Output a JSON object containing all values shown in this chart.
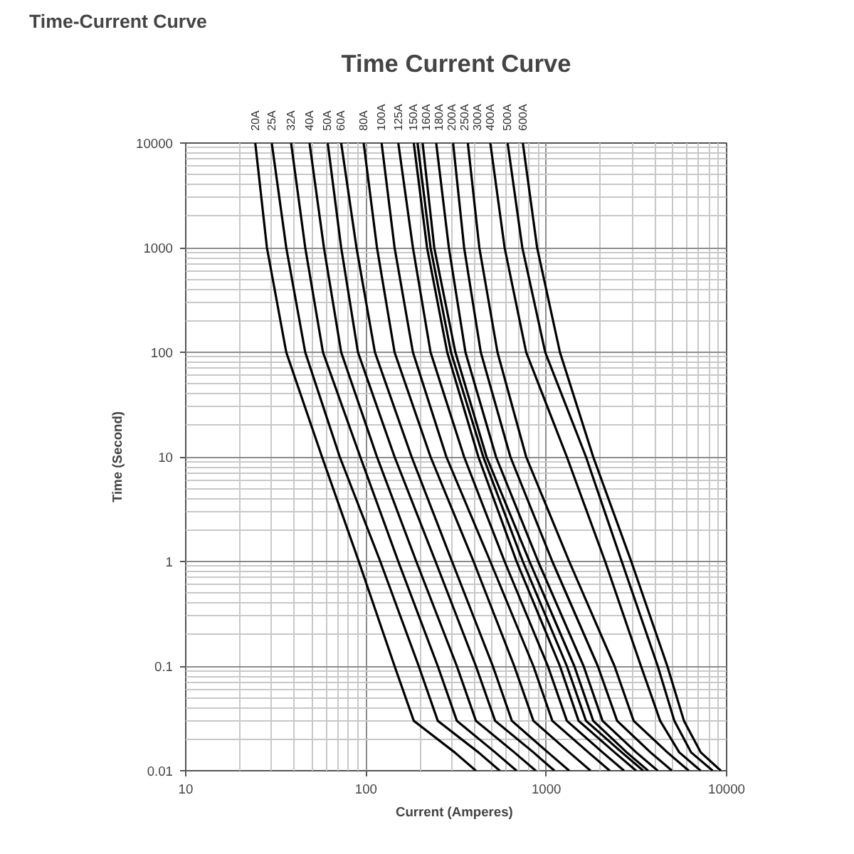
{
  "chart_data": {
    "type": "line",
    "title": "Time-Current Curve",
    "subtitle": "Time Current Curve",
    "xlabel": "Current  (Amperes)",
    "ylabel": "Time (Second)",
    "log": "xy",
    "xlim": [
      10,
      10000
    ],
    "ylim": [
      0.01,
      10000
    ],
    "xticks": [
      10,
      100,
      1000,
      10000
    ],
    "yticks": [
      0.01,
      0.1,
      1,
      10,
      100,
      1000,
      10000
    ],
    "grid": true,
    "line_style": "solid",
    "series": [
      {
        "name": "20A",
        "color": "#000000",
        "x": [
          24.3,
          28.2,
          36.1,
          57.0,
          91.2,
          144,
          184,
          310,
          407
        ],
        "values": [
          10000,
          1000,
          100,
          10,
          1,
          0.1,
          0.03,
          0.015,
          0.01
        ]
      },
      {
        "name": "25A",
        "color": "#000000",
        "x": [
          30.0,
          36.1,
          46.0,
          71.5,
          120,
          196,
          250,
          420,
          552
        ],
        "values": [
          10000,
          1000,
          100,
          10,
          1,
          0.1,
          0.03,
          0.015,
          0.01
        ]
      },
      {
        "name": "32A",
        "color": "#000000",
        "x": [
          38.4,
          46.0,
          57.7,
          92.9,
          151,
          250,
          319,
          520,
          684
        ],
        "values": [
          10000,
          1000,
          100,
          10,
          1,
          0.1,
          0.03,
          0.015,
          0.01
        ]
      },
      {
        "name": "40A",
        "color": "#000000",
        "x": [
          48.6,
          58.4,
          72.8,
          115,
          190,
          319,
          407,
          664,
          874
        ],
        "values": [
          10000,
          1000,
          100,
          10,
          1,
          0.1,
          0.03,
          0.015,
          0.01
        ]
      },
      {
        "name": "50A",
        "color": "#000000",
        "x": [
          61.3,
          72.8,
          90.2,
          144,
          243,
          407,
          520,
          848,
          1110
        ],
        "values": [
          10000,
          1000,
          100,
          10,
          1,
          0.1,
          0.03,
          0.015,
          0.01
        ]
      },
      {
        "name": "60A",
        "color": "#000000",
        "x": [
          72.8,
          88.5,
          112,
          179,
          300,
          505,
          644,
          1020,
          1340
        ],
        "values": [
          10000,
          1000,
          100,
          10,
          1,
          0.1,
          0.03,
          0.015,
          0.01
        ]
      },
      {
        "name": "80A",
        "color": "#000000",
        "x": [
          97.0,
          115,
          144,
          228,
          395,
          664,
          848,
          1340,
          1760
        ],
        "values": [
          10000,
          1000,
          100,
          10,
          1,
          0.1,
          0.03,
          0.015,
          0.01
        ]
      },
      {
        "name": "100A",
        "color": "#000000",
        "x": [
          122,
          144,
          182,
          279,
          489,
          848,
          1080,
          1710,
          2250
        ],
        "values": [
          10000,
          1000,
          100,
          10,
          1,
          0.1,
          0.03,
          0.015,
          0.01
        ]
      },
      {
        "name": "125A",
        "color": "#000000",
        "x": [
          151,
          182,
          228,
          350,
          587,
          1020,
          1300,
          2050,
          2700
        ],
        "values": [
          10000,
          1000,
          100,
          10,
          1,
          0.1,
          0.03,
          0.015,
          0.01
        ]
      },
      {
        "name": "150A",
        "color": "#000000",
        "x": [
          184,
          218,
          282,
          420,
          684,
          1190,
          1510,
          2390,
          3150
        ],
        "values": [
          10000,
          1000,
          100,
          10,
          1,
          0.1,
          0.03,
          0.015,
          0.01
        ]
      },
      {
        "name": "160A",
        "color": "#000000",
        "x": [
          193,
          228,
          296,
          447,
          741,
          1300,
          1660,
          2620,
          3450
        ],
        "values": [
          10000,
          1000,
          100,
          10,
          1,
          0.1,
          0.03,
          0.015,
          0.01
        ]
      },
      {
        "name": "180A",
        "color": "#000000",
        "x": [
          206,
          239,
          313,
          466,
          807,
          1430,
          1820,
          2790,
          3670
        ],
        "values": [
          10000,
          1000,
          100,
          10,
          1,
          0.1,
          0.03,
          0.015,
          0.01
        ]
      },
      {
        "name": "200A",
        "color": "#000000",
        "x": [
          245,
          288,
          356,
          526,
          901,
          1610,
          2050,
          3150,
          4150
        ],
        "values": [
          10000,
          1000,
          100,
          10,
          1,
          0.1,
          0.03,
          0.015,
          0.01
        ]
      },
      {
        "name": "250A",
        "color": "#000000",
        "x": [
          304,
          350,
          433,
          632,
          1080,
          1930,
          2470,
          3780,
          4980
        ],
        "values": [
          10000,
          1000,
          100,
          10,
          1,
          0.1,
          0.03,
          0.015,
          0.01
        ]
      },
      {
        "name": "300A",
        "color": "#000000",
        "x": [
          367,
          425,
          536,
          773,
          1340,
          2390,
          3050,
          4690,
          6170
        ],
        "values": [
          10000,
          1000,
          100,
          10,
          1,
          0.1,
          0.03,
          0.015,
          0.01
        ]
      },
      {
        "name": "400A",
        "color": "#000000",
        "x": [
          489,
          587,
          773,
          1300,
          2120,
          3350,
          4280,
          5460,
          7180
        ],
        "values": [
          10000,
          1000,
          100,
          10,
          1,
          0.1,
          0.03,
          0.015,
          0.01
        ]
      },
      {
        "name": "500A",
        "color": "#000000",
        "x": [
          610,
          736,
          986,
          1660,
          2620,
          4150,
          5130,
          6350,
          8370
        ],
        "values": [
          10000,
          1000,
          100,
          10,
          1,
          0.1,
          0.03,
          0.015,
          0.01
        ]
      },
      {
        "name": "600A",
        "color": "#000000",
        "x": [
          741,
          889,
          1190,
          1820,
          2960,
          4690,
          5800,
          7180,
          9290
        ],
        "values": [
          10000,
          1000,
          100,
          10,
          1,
          0.1,
          0.03,
          0.015,
          0.01
        ]
      }
    ]
  }
}
